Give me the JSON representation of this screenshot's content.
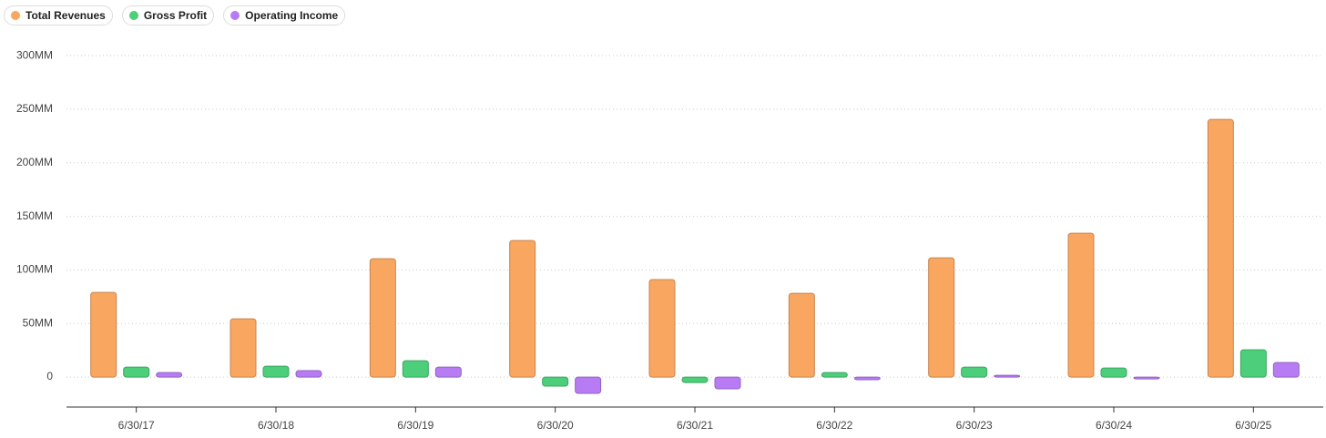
{
  "chart_data": {
    "type": "bar",
    "categories": [
      "6/30/17",
      "6/30/18",
      "6/30/19",
      "6/30/20",
      "6/30/21",
      "6/30/22",
      "6/30/23",
      "6/30/24",
      "6/30/25"
    ],
    "series": [
      {
        "name": "Total Revenues",
        "color": "#f9a661",
        "values": [
          79,
          54.4,
          110.5,
          127.5,
          91,
          78.2,
          111.3,
          134.3,
          240.5
        ]
      },
      {
        "name": "Gross Profit",
        "color": "#4cce7a",
        "values": [
          9.3,
          10.2,
          15.3,
          -8.5,
          -5.1,
          4.2,
          9.3,
          8.5,
          25.5
        ]
      },
      {
        "name": "Operating Income",
        "color": "#b77cf3",
        "values": [
          4.2,
          6,
          9.3,
          -15.3,
          -11,
          -2.5,
          1.7,
          -1.7,
          13.6
        ]
      }
    ],
    "ylim": [
      -28,
      318
    ],
    "yticks": [
      0,
      {
        "value": 50,
        "label": "50MM"
      },
      {
        "value": 100,
        "label": "100MM"
      },
      {
        "value": 150,
        "label": "150MM"
      },
      {
        "value": 200,
        "label": "200MM"
      },
      {
        "value": 250,
        "label": "250MM"
      },
      {
        "value": 300,
        "label": "300MM"
      }
    ],
    "grid": true,
    "legend": "top-left"
  }
}
